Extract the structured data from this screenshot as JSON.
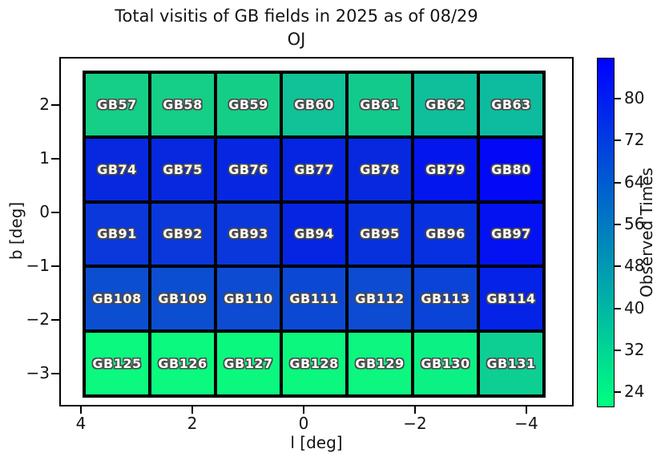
{
  "chart_data": {
    "type": "heatmap",
    "title": "Total visitis of GB fields in 2025 as of 08/29",
    "subtitle": "OJ",
    "xlabel": "l [deg]",
    "ylabel": "b [deg]",
    "x_ticks": [
      "4",
      "2",
      "0",
      "−2",
      "−4"
    ],
    "y_ticks": [
      "2",
      "1",
      "0",
      "−1",
      "−2",
      "−3"
    ],
    "x_axis_reversed": true,
    "grid_columns_l_centers_estimate": [
      3.4,
      2.2,
      1.0,
      -0.2,
      -1.4,
      -2.6,
      -3.8
    ],
    "grid_rows_b_centers_estimate": [
      2.0,
      0.8,
      -0.4,
      -1.6,
      -2.9
    ],
    "colorbar": {
      "label": "Observed Times",
      "ticks": [
        "80",
        "72",
        "64",
        "56",
        "48",
        "40",
        "32",
        "24"
      ],
      "range_estimate": [
        21,
        88
      ],
      "colormap": "winter_r",
      "top_color": "#0000ff",
      "mid_color": "#0080bf",
      "bottom_color": "#00ff80"
    },
    "rows": [
      {
        "cells": [
          {
            "label": "GB57",
            "value_estimate": 28,
            "color": "#15cf86"
          },
          {
            "label": "GB58",
            "value_estimate": 28,
            "color": "#15cf86"
          },
          {
            "label": "GB59",
            "value_estimate": 28,
            "color": "#14ce88"
          },
          {
            "label": "GB60",
            "value_estimate": 34,
            "color": "#0fc297"
          },
          {
            "label": "GB61",
            "value_estimate": 30,
            "color": "#12ca8c"
          },
          {
            "label": "GB62",
            "value_estimate": 36,
            "color": "#0ebf9b"
          },
          {
            "label": "GB63",
            "value_estimate": 37,
            "color": "#0dbc9e"
          }
        ]
      },
      {
        "cells": [
          {
            "label": "GB74",
            "value_estimate": 77,
            "color": "#0628df"
          },
          {
            "label": "GB75",
            "value_estimate": 77,
            "color": "#0628df"
          },
          {
            "label": "GB76",
            "value_estimate": 77,
            "color": "#0527e1"
          },
          {
            "label": "GB77",
            "value_estimate": 78,
            "color": "#0525e2"
          },
          {
            "label": "GB78",
            "value_estimate": 77,
            "color": "#0628df"
          },
          {
            "label": "GB79",
            "value_estimate": 83,
            "color": "#0416ee"
          },
          {
            "label": "GB80",
            "value_estimate": 86,
            "color": "#0309f7"
          }
        ]
      },
      {
        "cells": [
          {
            "label": "GB91",
            "value_estimate": 73,
            "color": "#0a38da"
          },
          {
            "label": "GB92",
            "value_estimate": 73,
            "color": "#0a38da"
          },
          {
            "label": "GB93",
            "value_estimate": 73,
            "color": "#0a37db"
          },
          {
            "label": "GB94",
            "value_estimate": 78,
            "color": "#0525e3"
          },
          {
            "label": "GB95",
            "value_estimate": 75,
            "color": "#0831de"
          },
          {
            "label": "GB96",
            "value_estimate": 75,
            "color": "#0730e0"
          },
          {
            "label": "GB97",
            "value_estimate": 84,
            "color": "#0412f2"
          }
        ]
      },
      {
        "cells": [
          {
            "label": "GB108",
            "value_estimate": 67,
            "color": "#0c4ed0"
          },
          {
            "label": "GB109",
            "value_estimate": 67,
            "color": "#0c4ed0"
          },
          {
            "label": "GB110",
            "value_estimate": 68,
            "color": "#0c4bd2"
          },
          {
            "label": "GB111",
            "value_estimate": 68,
            "color": "#0b49d4"
          },
          {
            "label": "GB112",
            "value_estimate": 68,
            "color": "#0c4bd2"
          },
          {
            "label": "GB113",
            "value_estimate": 70,
            "color": "#0a43d7"
          },
          {
            "label": "GB114",
            "value_estimate": 79,
            "color": "#0522e7"
          }
        ]
      },
      {
        "cells": [
          {
            "label": "GB125",
            "value_estimate": 22,
            "color": "#0bf97e"
          },
          {
            "label": "GB126",
            "value_estimate": 22,
            "color": "#0bf97e"
          },
          {
            "label": "GB127",
            "value_estimate": 22,
            "color": "#0bf87e"
          },
          {
            "label": "GB128",
            "value_estimate": 22,
            "color": "#0bf77e"
          },
          {
            "label": "GB129",
            "value_estimate": 23,
            "color": "#0cf680"
          },
          {
            "label": "GB130",
            "value_estimate": 24,
            "color": "#0cf184"
          },
          {
            "label": "GB131",
            "value_estimate": 33,
            "color": "#0dcf93"
          }
        ]
      }
    ]
  }
}
